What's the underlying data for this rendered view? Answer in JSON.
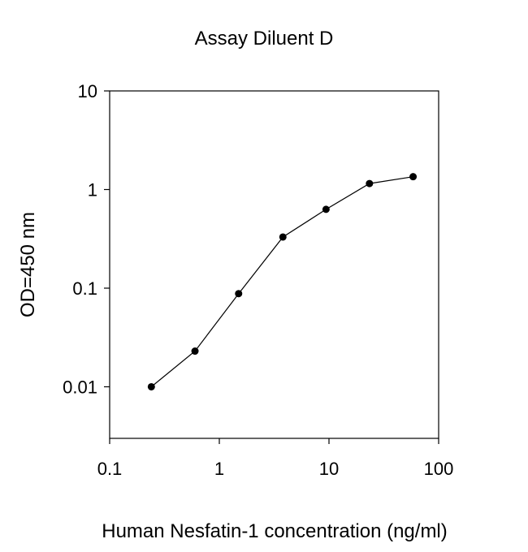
{
  "chart_data": {
    "type": "line",
    "title": "Assay Diluent D",
    "xlabel": "Human Nesfatin-1 concentration (ng/ml)",
    "ylabel": "OD=450 nm",
    "xscale": "log",
    "yscale": "log",
    "xlim": [
      0.1,
      100
    ],
    "ylim": [
      0.003,
      10
    ],
    "grid": false,
    "legend": "none",
    "x_ticks": [
      0.1,
      1,
      10,
      100
    ],
    "x_tick_labels": [
      "0.1",
      "1",
      "10",
      "100"
    ],
    "y_ticks": [
      0.01,
      0.1,
      1,
      10
    ],
    "y_tick_labels": [
      "0.01",
      "0.1",
      "1",
      "10"
    ],
    "series": [
      {
        "x": [
          0.24,
          0.6,
          1.5,
          3.8,
          9.4,
          23.4,
          58.5
        ],
        "y": [
          0.01,
          0.023,
          0.088,
          0.33,
          0.63,
          1.15,
          1.35
        ]
      }
    ],
    "colors": {
      "line": "#000000",
      "marker": "#000000",
      "axes": "#000000"
    }
  }
}
